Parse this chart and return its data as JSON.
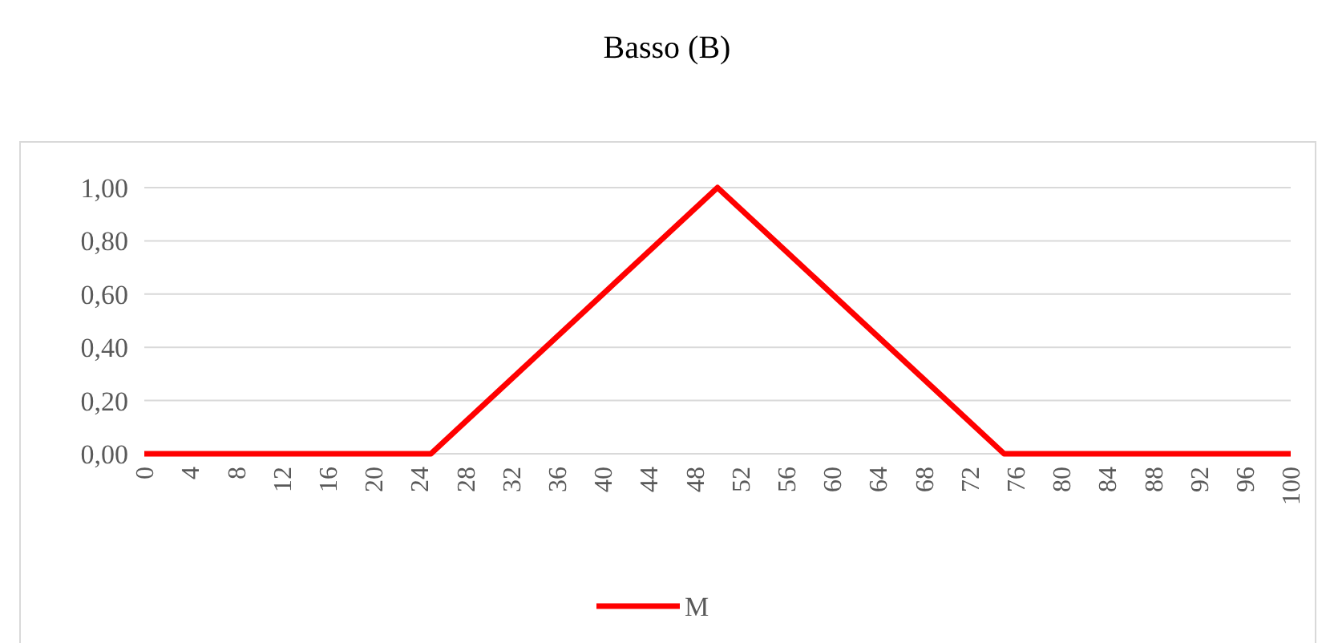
{
  "chart_data": {
    "type": "line",
    "title": "Basso (B)",
    "x": [
      0,
      25,
      50,
      75,
      100
    ],
    "series": [
      {
        "name": "M",
        "color": "#ff0000",
        "values": [
          0,
          0,
          1,
          0,
          0
        ]
      }
    ],
    "xlim": [
      0,
      100
    ],
    "xticks": [
      0,
      4,
      8,
      12,
      16,
      20,
      24,
      28,
      32,
      36,
      40,
      44,
      48,
      52,
      56,
      60,
      64,
      68,
      72,
      76,
      80,
      84,
      88,
      92,
      96,
      100
    ],
    "ylim": [
      0,
      1
    ],
    "yticks": [
      {
        "value": 0,
        "label": "0,00"
      },
      {
        "value": 0.2,
        "label": "0,20"
      },
      {
        "value": 0.4,
        "label": "0,40"
      },
      {
        "value": 0.6,
        "label": "0,60"
      },
      {
        "value": 0.8,
        "label": "0,80"
      },
      {
        "value": 1,
        "label": "1,00"
      }
    ],
    "grid": "y",
    "legend": "bottom",
    "marker": "none",
    "line_style": "solid"
  }
}
